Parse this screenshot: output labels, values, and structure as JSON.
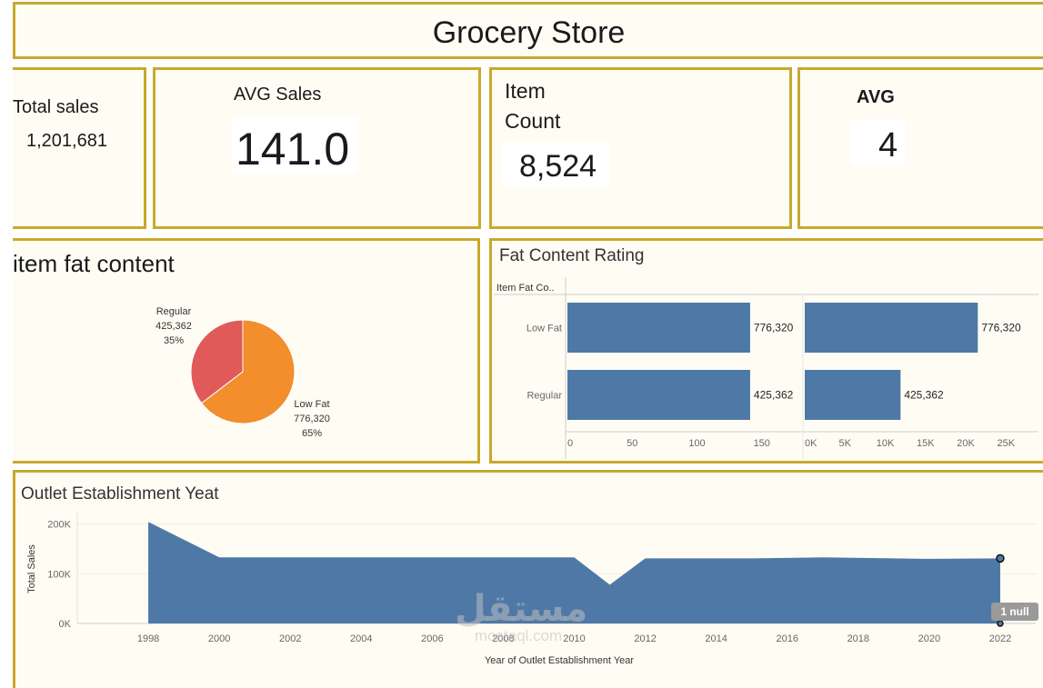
{
  "header": {
    "title": "Grocery Store"
  },
  "kpis": {
    "total_sales": {
      "label": "Total sales",
      "value": "1,201,681"
    },
    "avg_sales": {
      "label": "AVG Sales",
      "value": "141.0"
    },
    "item_count": {
      "label_line1": "Item",
      "label_line2": "Count",
      "value": "8,524"
    },
    "avg_rating": {
      "label": "AVG",
      "value": "4"
    }
  },
  "fat_pie": {
    "title": "item fat content",
    "colors": {
      "Regular": "#e05a5a",
      "Low Fat": "#f28e2b"
    }
  },
  "fat_bars": {
    "title": "Fat Content Rating",
    "column_header": "Item Fat Co..",
    "bar_color": "#4e79a7"
  },
  "outlet_chart": {
    "title": "Outlet Establishment Yeat",
    "xlabel": "Year of Outlet Establishment Year",
    "ylabel": "Total Sales",
    "null_badge": "1 null",
    "fill_color": "#4e79a7"
  },
  "watermark": {
    "arabic": "مستقل",
    "latin": "mostaql.com"
  },
  "chart_data": [
    {
      "type": "pie",
      "categories": [
        "Regular",
        "Low Fat"
      ],
      "values": [
        425362,
        776320
      ],
      "value_labels": [
        "425,362",
        "776,320"
      ],
      "percent_labels": [
        "35%",
        "65%"
      ]
    },
    {
      "type": "bar",
      "orientation": "horizontal",
      "categories": [
        "Low Fat",
        "Regular"
      ],
      "values": [
        141,
        141
      ],
      "value_labels": [
        "776,320",
        "425,362"
      ],
      "xlim": [
        0,
        160
      ],
      "xticks": [
        "0",
        "50",
        "100",
        "150"
      ]
    },
    {
      "type": "bar",
      "orientation": "horizontal",
      "categories": [
        "Low Fat",
        "Regular"
      ],
      "values": [
        21500,
        11900
      ],
      "value_labels": [
        "776,320",
        "425,362"
      ],
      "xlim": [
        0,
        27000
      ],
      "xticks": [
        "0K",
        "5K",
        "10K",
        "15K",
        "20K",
        "25K"
      ]
    },
    {
      "type": "area",
      "x": [
        1998,
        2000,
        2010,
        2011,
        2012,
        2015,
        2017,
        2020,
        2022
      ],
      "y": [
        204500,
        133000,
        133000,
        78000,
        131000,
        131000,
        133000,
        130000,
        131000
      ],
      "xlim": [
        1996,
        2023
      ],
      "ylim": [
        0,
        214000
      ],
      "xticks": [
        "1998",
        "2000",
        "2002",
        "2004",
        "2006",
        "2008",
        "2010",
        "2012",
        "2014",
        "2016",
        "2018",
        "2020",
        "2022"
      ],
      "yticks": [
        "0K",
        "100K",
        "200K"
      ],
      "ytick_values": [
        0,
        100000,
        200000
      ]
    }
  ]
}
